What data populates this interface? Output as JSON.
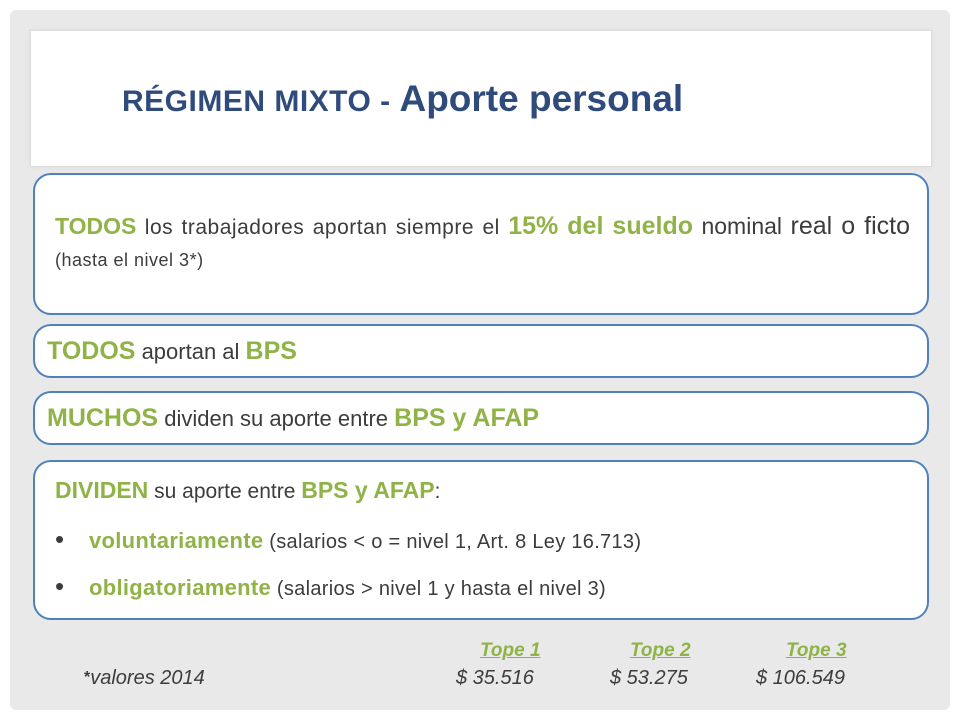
{
  "title": {
    "part1": "RÉGIMEN MIXTO - ",
    "part2": "Aporte personal"
  },
  "box1": {
    "todos": "TODOS",
    "text_a": " los trabajadores aportan siempre el ",
    "percent": "15% del sueldo",
    "text_b": " nominal ",
    "text_c": "real o ficto",
    "text_d": " (hasta el nivel 3*)"
  },
  "box2": {
    "todos": "TODOS",
    "text": " aportan al ",
    "bps": "BPS"
  },
  "box3": {
    "muchos": "MUCHOS",
    "text": " dividen su aporte entre ",
    "bps_afap": "BPS y AFAP"
  },
  "box4": {
    "dividen": "DIVIDEN",
    "text": " su aporte entre ",
    "bps_afap": "BPS y AFAP",
    "colon": ":",
    "bullets": [
      {
        "keyword": "voluntariamente",
        "detail": " (salarios < o = nivel 1, Art. 8 Ley 16.713)"
      },
      {
        "keyword": "obligatoriamente",
        "detail": " (salarios > nivel 1 y hasta el nivel 3)"
      }
    ]
  },
  "footer": {
    "star": "*",
    "valores": "valores 2014",
    "topes": [
      {
        "label": "Tope 1",
        "value": "$ 35.516"
      },
      {
        "label": "Tope 2",
        "value": "$ 53.275"
      },
      {
        "label": "Tope 3",
        "value": "$ 106.549"
      }
    ]
  },
  "colors": {
    "title": "#2f4b7c",
    "accent_green": "#8fb346",
    "box_border": "#4f81bd",
    "text": "#3c3c3c",
    "frame": "#e9e9e9"
  }
}
